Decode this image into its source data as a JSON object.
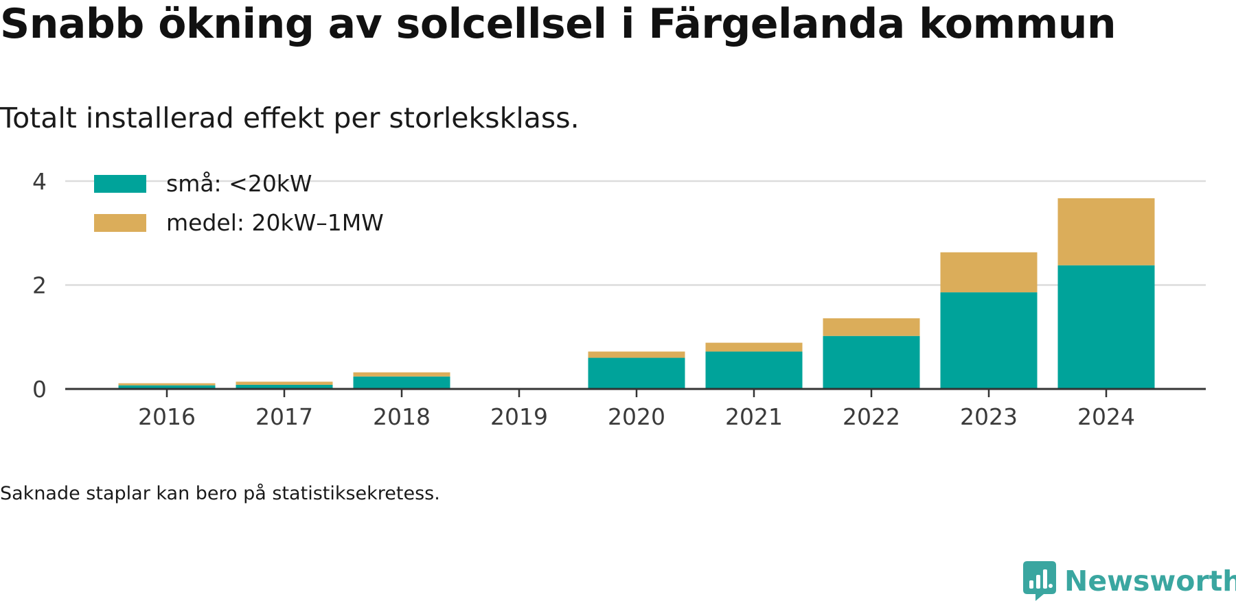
{
  "title": "Snabb ökning av solcellsel i Färgelanda kommun",
  "subtitle": "Totalt installerad effekt per storleksklass.",
  "footnote": "Saknade staplar kan bero på statistiksekretess.",
  "brand": {
    "name": "Newsworthy",
    "icon": "newsworthy-logo-icon",
    "color": "#3aa6a0"
  },
  "chart_data": {
    "type": "bar",
    "stacked": true,
    "categories": [
      "2016",
      "2017",
      "2018",
      "2019",
      "2020",
      "2021",
      "2022",
      "2023",
      "2024"
    ],
    "series": [
      {
        "name": "små: <20kW",
        "color": "#00a39a",
        "values": [
          0.07,
          0.08,
          0.24,
          null,
          0.6,
          0.72,
          1.02,
          1.86,
          2.38
        ]
      },
      {
        "name": "medel: 20kW–1MW",
        "color": "#dbad5a",
        "values": [
          0.04,
          0.06,
          0.08,
          null,
          0.12,
          0.17,
          0.34,
          0.77,
          1.29
        ]
      }
    ],
    "ylim": [
      0,
      4
    ],
    "yticks": [
      "0",
      "2",
      "4"
    ],
    "grid": true,
    "legend": "top-left",
    "xlabel": "",
    "ylabel": ""
  }
}
